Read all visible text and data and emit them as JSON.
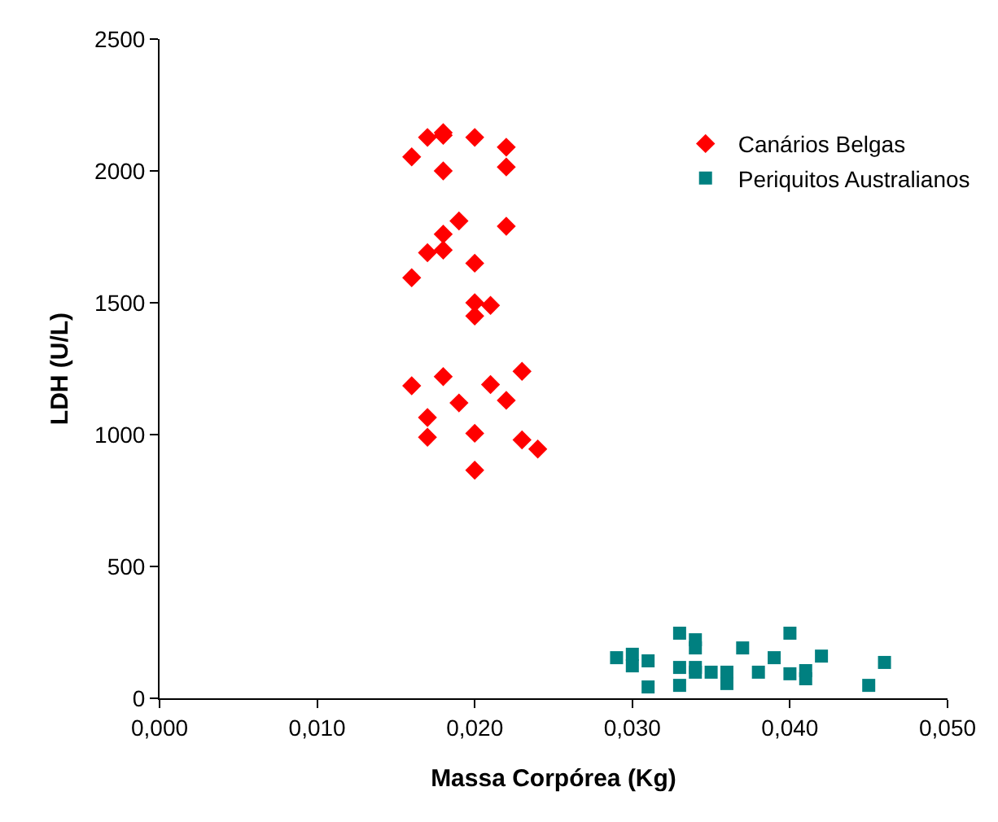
{
  "chart_data": {
    "type": "scatter",
    "xlabel": "Massa Corpórea (Kg)",
    "ylabel": "LDH (U/L)",
    "xlim": [
      0,
      0.05
    ],
    "xticks": [
      {
        "value": 0,
        "label": "0,000"
      },
      {
        "value": 0.01,
        "label": "0,010"
      },
      {
        "value": 0.02,
        "label": "0,020"
      },
      {
        "value": 0.03,
        "label": "0,030"
      },
      {
        "value": 0.04,
        "label": "0,040"
      },
      {
        "value": 0.05,
        "label": "0,050"
      }
    ],
    "ylim": [
      0,
      2500
    ],
    "yticks": [
      0,
      500,
      1000,
      1500,
      2000,
      2500
    ],
    "legend": "top right",
    "series": [
      {
        "name": "Canários Belgas",
        "color": "#ff0000",
        "marker": "diamond",
        "x": [
          0.016,
          0.017,
          0.018,
          0.018,
          0.02,
          0.022,
          0.018,
          0.022,
          0.019,
          0.018,
          0.022,
          0.017,
          0.018,
          0.02,
          0.016,
          0.02,
          0.021,
          0.02,
          0.016,
          0.018,
          0.021,
          0.023,
          0.019,
          0.022,
          0.017,
          0.017,
          0.02,
          0.023,
          0.024,
          0.02
        ],
        "values": [
          2053,
          2127,
          2145,
          2135,
          2127,
          2090,
          2000,
          2015,
          1810,
          1760,
          1790,
          1690,
          1700,
          1650,
          1595,
          1500,
          1490,
          1450,
          1185,
          1220,
          1190,
          1240,
          1120,
          1130,
          1065,
          990,
          1005,
          980,
          945,
          865
        ]
      },
      {
        "name": "Periquitos Australianos",
        "color": "#008080",
        "marker": "square",
        "x": [
          0.029,
          0.03,
          0.03,
          0.031,
          0.031,
          0.033,
          0.034,
          0.034,
          0.033,
          0.033,
          0.034,
          0.034,
          0.035,
          0.036,
          0.036,
          0.037,
          0.038,
          0.039,
          0.04,
          0.04,
          0.041,
          0.041,
          0.042,
          0.045,
          0.046
        ],
        "values": [
          154,
          167,
          123,
          142,
          43,
          247,
          222,
          191,
          117,
          49,
          117,
          99,
          99,
          99,
          56,
          191,
          99,
          154,
          247,
          93,
          105,
          74,
          160,
          49,
          136
        ]
      }
    ]
  }
}
